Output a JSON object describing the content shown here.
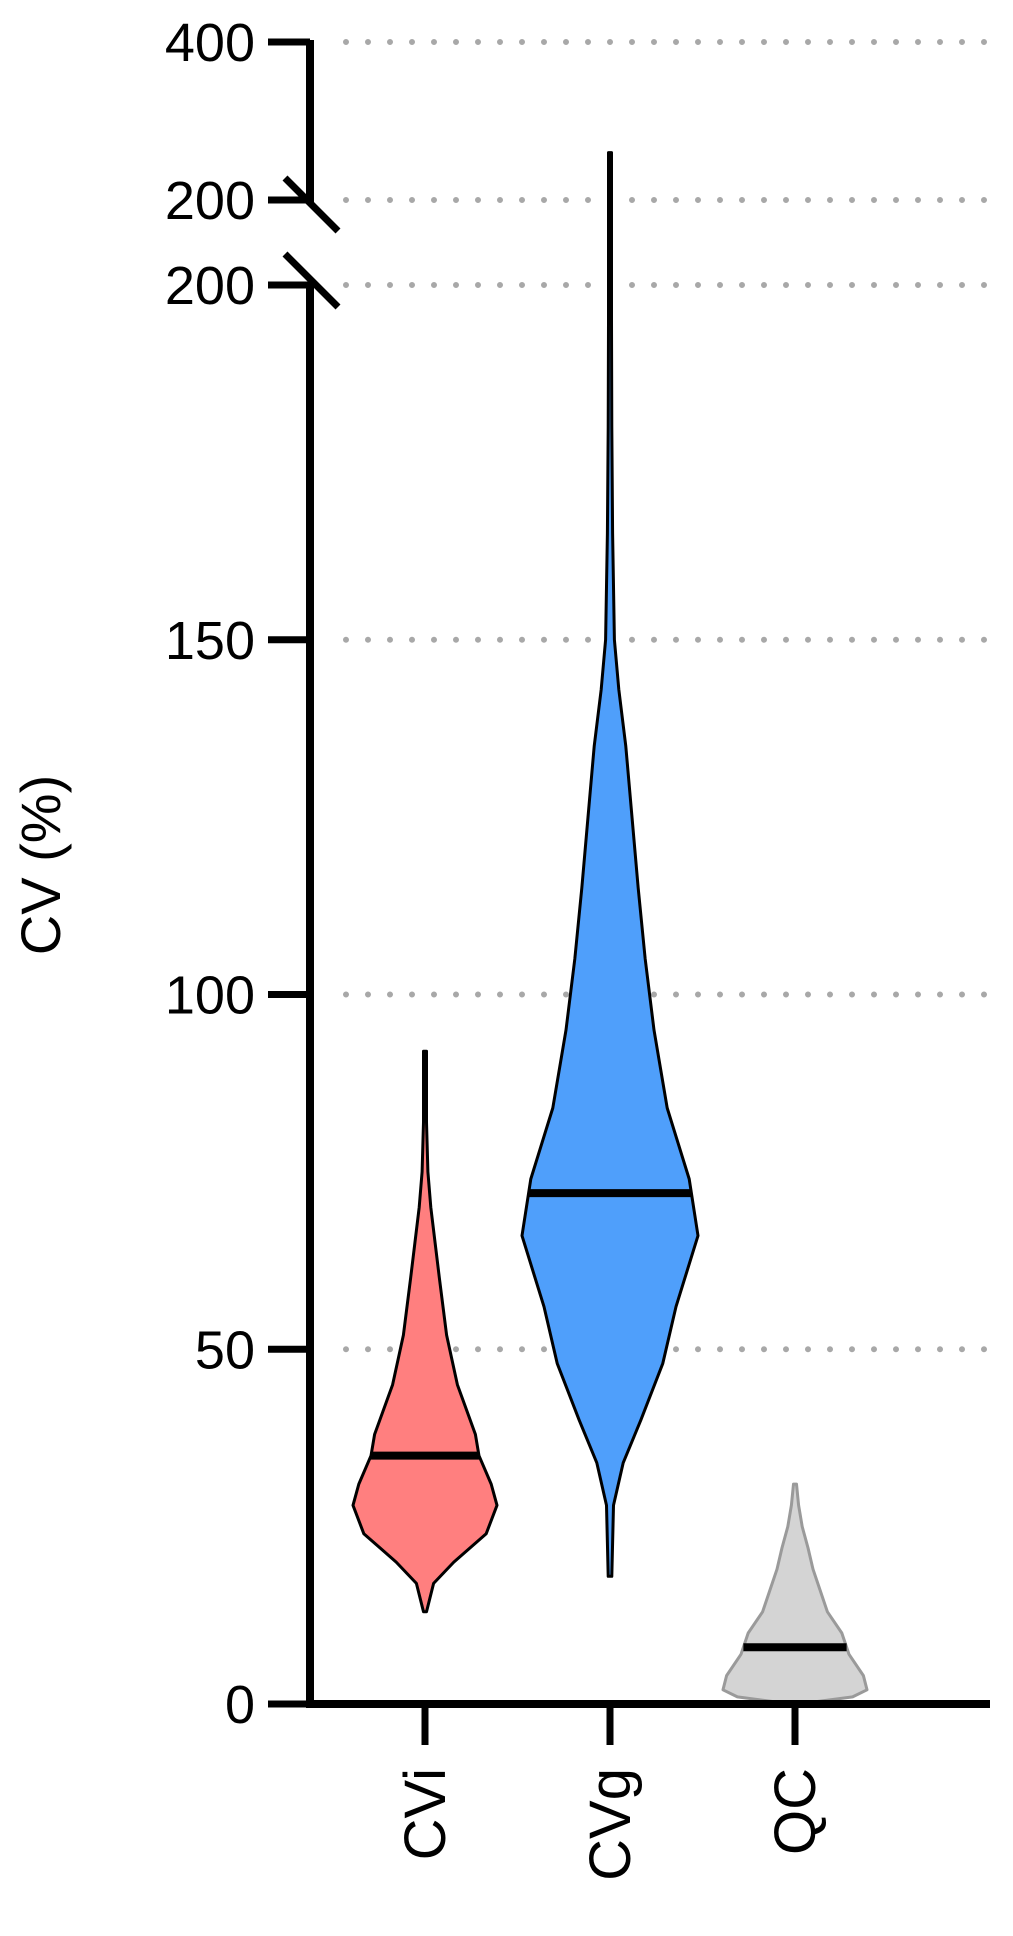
{
  "chart_data": {
    "type": "violin",
    "title": "",
    "xlabel": "",
    "ylabel": "CV (%)",
    "grid": "dotted-horizontal",
    "legend": "none",
    "axis_break": {
      "lower_segment": [
        0,
        200
      ],
      "upper_segment": [
        200,
        400
      ],
      "lower_ticks": [
        "0",
        "50",
        "100",
        "150",
        "200"
      ],
      "upper_ticks": [
        "200",
        "400"
      ]
    },
    "categories": [
      "CVi",
      "CVg",
      "QC"
    ],
    "series": [
      {
        "category": "CVi",
        "color": "#ff7f7f",
        "stroke": "#000000",
        "median": 35,
        "min": 13,
        "max": 92,
        "density": [
          [
            13,
            0.02
          ],
          [
            17,
            0.12
          ],
          [
            20,
            0.4
          ],
          [
            24,
            0.85
          ],
          [
            28,
            1.0
          ],
          [
            31,
            0.92
          ],
          [
            35,
            0.75
          ],
          [
            38,
            0.7
          ],
          [
            45,
            0.45
          ],
          [
            52,
            0.3
          ],
          [
            60,
            0.2
          ],
          [
            65,
            0.14
          ],
          [
            70,
            0.08
          ],
          [
            75,
            0.04
          ],
          [
            82,
            0.02
          ],
          [
            92,
            0.01
          ]
        ]
      },
      {
        "category": "CVg",
        "color": "#4f9ffb",
        "stroke": "#000000",
        "median": 72,
        "min": 18,
        "max": 260,
        "density": [
          [
            18,
            0.02
          ],
          [
            28,
            0.04
          ],
          [
            34,
            0.15
          ],
          [
            40,
            0.35
          ],
          [
            48,
            0.6
          ],
          [
            56,
            0.75
          ],
          [
            66,
            1.0
          ],
          [
            74,
            0.9
          ],
          [
            84,
            0.65
          ],
          [
            95,
            0.5
          ],
          [
            105,
            0.4
          ],
          [
            115,
            0.32
          ],
          [
            125,
            0.25
          ],
          [
            135,
            0.18
          ],
          [
            143,
            0.1
          ],
          [
            150,
            0.05
          ],
          [
            165,
            0.03
          ],
          [
            180,
            0.02
          ],
          [
            195,
            0.015
          ],
          [
            200,
            0.01
          ],
          [
            230,
            0.008
          ],
          [
            260,
            0.006
          ]
        ]
      },
      {
        "category": "QC",
        "color": "#d4d4d4",
        "stroke": "#9a9a9a",
        "median": 8,
        "min": 0,
        "max": 31,
        "density": [
          [
            0,
            0.05
          ],
          [
            1,
            0.8
          ],
          [
            2,
            1.0
          ],
          [
            4,
            0.95
          ],
          [
            7,
            0.75
          ],
          [
            10,
            0.65
          ],
          [
            13,
            0.45
          ],
          [
            16,
            0.35
          ],
          [
            19,
            0.25
          ],
          [
            22,
            0.18
          ],
          [
            25,
            0.1
          ],
          [
            28,
            0.05
          ],
          [
            31,
            0.02
          ]
        ]
      }
    ]
  }
}
